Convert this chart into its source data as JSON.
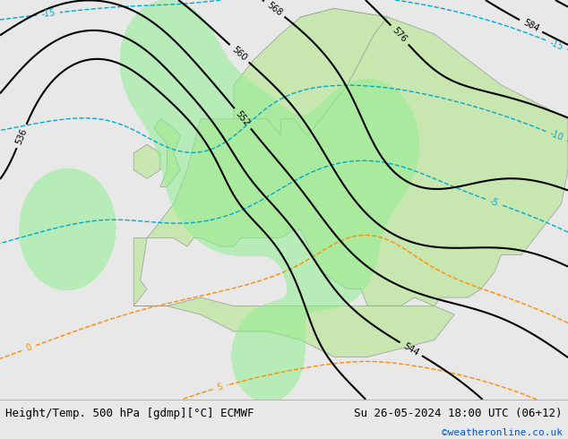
{
  "title_left": "Height/Temp. 500 hPa [gdmp][°C] ECMWF",
  "title_right": "Su 26-05-2024 18:00 UTC (06+12)",
  "credit": "©weatheronline.co.uk",
  "credit_color": "#0055cc",
  "bg_color": "#f0f0f0",
  "map_bg": "#d8d8d8",
  "land_color": "#c8e6b0",
  "ocean_color": "#d8d8d8",
  "title_fontsize": 9,
  "credit_fontsize": 8,
  "z500_color": "#000000",
  "temp_pos_color": "#ff8c00",
  "temp_neg_color": "#00aacc",
  "rain_color": "#00cc44",
  "font_family": "monospace"
}
